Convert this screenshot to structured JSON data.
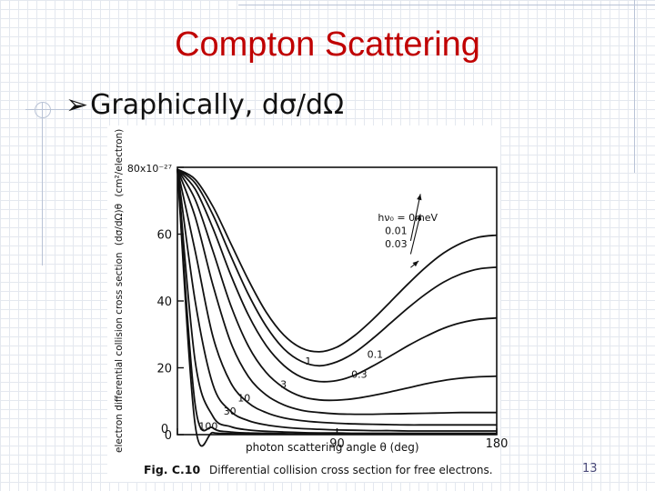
{
  "slide": {
    "title": "Compton Scattering",
    "bullet_marker": "➢",
    "bullet_text": "Graphically, dσ/dΩ",
    "page_number": "13"
  },
  "figure": {
    "caption_label": "Fig. C.10",
    "caption_text": "Differential collision cross section for free electrons."
  },
  "chart_data": {
    "type": "line",
    "ylabel_prefix": "electron differential collision cross section",
    "ylabel_formula": "(dσ/dΩ)θ",
    "ylabel_unit": "(cm²/electron)",
    "xlabel": "photon scattering angle θ (deg)",
    "xlim": [
      0,
      180
    ],
    "ylim": [
      0,
      80
    ],
    "x_ticks": [
      "0",
      "90",
      "180"
    ],
    "y_ticks": [
      "0",
      "20",
      "40",
      "60",
      "80x10⁻²⁷"
    ],
    "series": [
      {
        "name": "0 meV",
        "x": [
          0,
          10,
          20,
          30,
          40,
          50,
          60,
          70,
          80,
          90,
          100,
          110,
          120,
          130,
          140,
          150,
          160,
          170,
          180
        ],
        "values": [
          79.4,
          76.4,
          68.3,
          57.3,
          46.3,
          36.7,
          29.8,
          25.9,
          24.8,
          26.2,
          29.7,
          34.4,
          39.7,
          45.1,
          50.1,
          54.3,
          57.3,
          59.1,
          59.7
        ]
      },
      {
        "name": "0.01",
        "x": [
          0,
          10,
          20,
          30,
          40,
          50,
          60,
          70,
          80,
          90,
          100,
          110,
          120,
          130,
          140,
          150,
          160,
          170,
          180
        ],
        "values": [
          79.4,
          75.3,
          65.8,
          53.6,
          42.0,
          32.5,
          25.7,
          21.9,
          20.6,
          21.8,
          24.6,
          28.7,
          33.3,
          37.9,
          42.1,
          45.6,
          48.1,
          49.6,
          50.1
        ]
      },
      {
        "name": "0.03",
        "x": [
          0,
          10,
          20,
          30,
          40,
          50,
          60,
          70,
          80,
          90,
          100,
          110,
          120,
          130,
          140,
          150,
          160,
          170,
          180
        ],
        "values": [
          79.4,
          73.5,
          61.8,
          47.9,
          35.8,
          26.7,
          20.7,
          17.2,
          15.9,
          16.2,
          17.8,
          20.5,
          23.5,
          26.6,
          29.4,
          31.8,
          33.5,
          34.5,
          34.9
        ]
      },
      {
        "name": "0.1",
        "x": [
          0,
          10,
          20,
          30,
          40,
          50,
          60,
          70,
          80,
          90,
          100,
          110,
          120,
          130,
          140,
          150,
          160,
          170,
          180
        ],
        "values": [
          79.4,
          70.4,
          55.0,
          38.8,
          26.5,
          18.6,
          14.0,
          11.4,
          10.4,
          10.3,
          10.8,
          11.7,
          12.8,
          14.0,
          15.2,
          16.2,
          16.9,
          17.3,
          17.5
        ]
      },
      {
        "name": "0.3",
        "x": [
          0,
          10,
          20,
          30,
          40,
          50,
          60,
          70,
          80,
          90,
          100,
          110,
          120,
          130,
          140,
          150,
          160,
          170,
          180
        ],
        "values": [
          79.4,
          65.2,
          44.8,
          27.7,
          17.4,
          11.9,
          8.9,
          7.3,
          6.6,
          6.2,
          6.1,
          6.1,
          6.2,
          6.3,
          6.4,
          6.5,
          6.6,
          6.6,
          6.6
        ]
      },
      {
        "name": "1",
        "x": [
          0,
          10,
          20,
          30,
          40,
          50,
          60,
          70,
          80,
          90,
          100,
          110,
          120,
          130,
          140,
          150,
          160,
          170,
          180
        ],
        "values": [
          79.4,
          55.0,
          29.4,
          15.6,
          9.5,
          6.6,
          5.0,
          4.2,
          3.7,
          3.4,
          3.2,
          3.1,
          3.0,
          2.9,
          2.9,
          2.9,
          2.9,
          2.9,
          2.9
        ]
      },
      {
        "name": "3",
        "x": [
          0,
          10,
          20,
          30,
          40,
          50,
          60,
          70,
          80,
          90,
          100,
          110,
          120,
          130,
          140,
          150,
          160,
          170,
          180
        ],
        "values": [
          79.4,
          40.0,
          15.0,
          7.0,
          4.2,
          2.9,
          2.2,
          1.8,
          1.6,
          1.4,
          1.3,
          1.2,
          1.2,
          1.1,
          1.1,
          1.1,
          1.1,
          1.1,
          1.1
        ]
      },
      {
        "name": "10",
        "x": [
          0,
          10,
          20,
          30,
          40,
          50,
          60,
          70,
          80,
          90,
          100,
          110,
          120,
          130,
          140,
          150,
          160,
          170,
          180
        ],
        "values": [
          79.4,
          22.0,
          5.5,
          2.4,
          1.4,
          1.0,
          0.8,
          0.6,
          0.5,
          0.5,
          0.4,
          0.4,
          0.4,
          0.4,
          0.4,
          0.4,
          0.4,
          0.4,
          0.4
        ]
      },
      {
        "name": "30",
        "x": [
          0,
          10,
          20,
          30,
          40,
          50,
          60,
          70,
          80,
          90,
          100,
          110,
          120,
          130,
          140,
          150,
          160,
          170,
          180
        ],
        "values": [
          79.4,
          9.0,
          2.0,
          0.8,
          0.5,
          0.4,
          0.3,
          0.2,
          0.2,
          0.2,
          0.2,
          0.2,
          0.2,
          0.2,
          0.2,
          0.2,
          0.2,
          0.2,
          0.2
        ]
      },
      {
        "name": "100",
        "x": [
          0,
          10,
          20,
          30,
          40,
          50,
          60,
          70,
          80,
          90,
          100,
          110,
          120,
          130,
          140,
          150,
          160,
          170,
          180
        ],
        "values": [
          79.4,
          3.0,
          0.6,
          0.3,
          0.2,
          0.1,
          0.1,
          0.1,
          0.1,
          0.1,
          0.1,
          0.1,
          0.1,
          0.1,
          0.1,
          0.1,
          0.1,
          0.1,
          0.1
        ]
      }
    ],
    "annotations": [
      {
        "text": "hν₀ = 0meV",
        "x": 113,
        "y": 64
      },
      {
        "text": "0.01",
        "x": 117,
        "y": 60
      },
      {
        "text": "0.03",
        "x": 117,
        "y": 56
      },
      {
        "text": "0.1",
        "x": 107,
        "y": 23
      },
      {
        "text": "0.3",
        "x": 98,
        "y": 17
      },
      {
        "text": "1",
        "x": 72,
        "y": 21
      },
      {
        "text": "3",
        "x": 58,
        "y": 14
      },
      {
        "text": "10",
        "x": 34,
        "y": 10
      },
      {
        "text": "30",
        "x": 26,
        "y": 6
      },
      {
        "text": "100",
        "x": 12,
        "y": 1.5
      }
    ],
    "legend_placement": "upper-right",
    "grid": false
  }
}
